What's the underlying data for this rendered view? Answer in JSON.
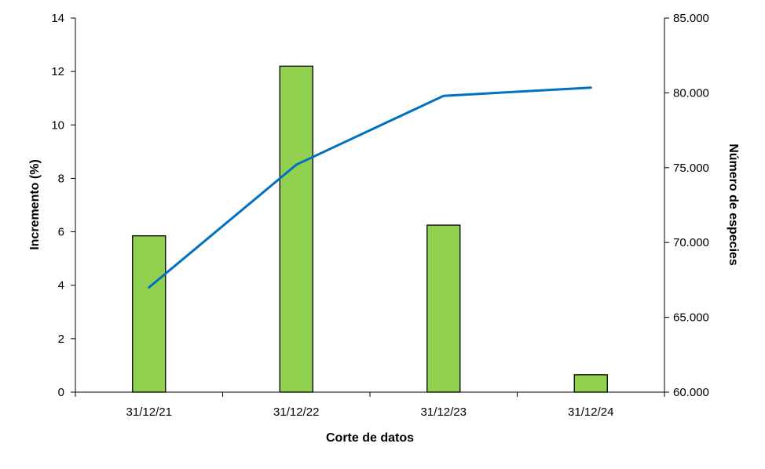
{
  "chart_data": {
    "type": "bar",
    "categories": [
      "31/12/21",
      "31/12/22",
      "31/12/23",
      "31/12/24"
    ],
    "series": [
      {
        "type": "bar",
        "axis": "left",
        "values": [
          5.85,
          12.2,
          6.25,
          0.65
        ]
      },
      {
        "type": "line",
        "axis": "right",
        "values": [
          67000,
          75200,
          79800,
          80350
        ]
      }
    ],
    "xlabel": "Corte de datos",
    "ylabel": "Incremento (%)",
    "ylabel_right": "Número de especies",
    "ylim": [
      0,
      14
    ],
    "ylim_right": [
      60000,
      85000
    ],
    "yticks": [
      "0",
      "2",
      "4",
      "6",
      "8",
      "10",
      "12",
      "14"
    ],
    "yticks_right": [
      "60.000",
      "65.000",
      "70.000",
      "75.000",
      "80.000",
      "85.000"
    ],
    "grid": false,
    "legend": "none",
    "colors": {
      "bar_fill": "#92d050",
      "bar_stroke": "#000000",
      "line": "#0070c0",
      "axis": "#000000"
    }
  }
}
